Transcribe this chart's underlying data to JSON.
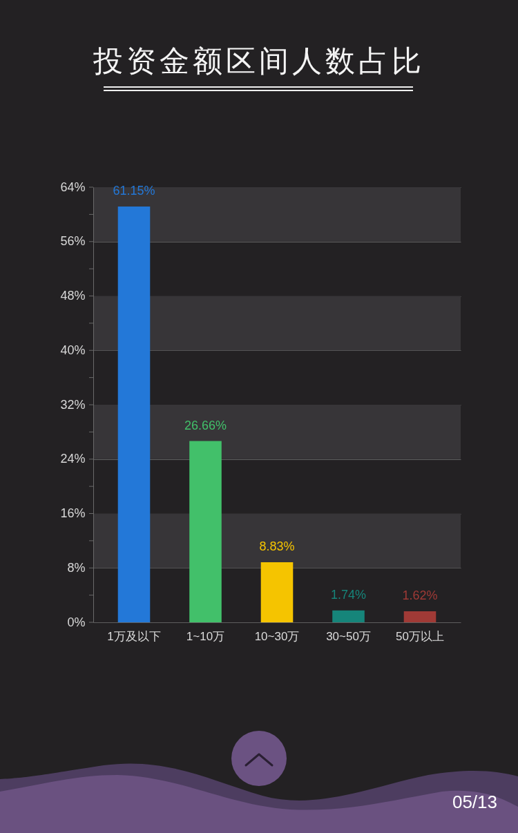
{
  "chart_data": {
    "type": "bar",
    "title": "投资金额区间人数占比",
    "categories": [
      "1万及以下",
      "1~10万",
      "10~30万",
      "30~50万",
      "50万以上"
    ],
    "values": [
      61.15,
      26.66,
      8.83,
      1.74,
      1.62
    ],
    "value_labels": [
      "61.15%",
      "26.66%",
      "8.83%",
      "1.74%",
      "1.62%"
    ],
    "colors": [
      "#2378d8",
      "#42c06a",
      "#f5c400",
      "#16857a",
      "#a03a36"
    ],
    "ylim": [
      0,
      64
    ],
    "yticks": [
      {
        "value": 0,
        "label": "0%"
      },
      {
        "value": 4,
        "label": null
      },
      {
        "value": 8,
        "label": "8%"
      },
      {
        "value": 12,
        "label": null
      },
      {
        "value": 16,
        "label": "16%"
      },
      {
        "value": 20,
        "label": null
      },
      {
        "value": 24,
        "label": "24%"
      },
      {
        "value": 28,
        "label": null
      },
      {
        "value": 32,
        "label": "32%"
      },
      {
        "value": 36,
        "label": null
      },
      {
        "value": 40,
        "label": "40%"
      },
      {
        "value": 44,
        "label": null
      },
      {
        "value": 48,
        "label": "48%"
      },
      {
        "value": 52,
        "label": null
      },
      {
        "value": 56,
        "label": "56%"
      },
      {
        "value": 60,
        "label": null
      },
      {
        "value": 64,
        "label": "64%"
      }
    ],
    "grid": "y",
    "bands": [
      {
        "axis": "y",
        "from": 8,
        "to": 16,
        "color": "#373538"
      },
      {
        "axis": "y",
        "from": 24,
        "to": 32,
        "color": "#373538"
      },
      {
        "axis": "y",
        "from": 40,
        "to": 48,
        "color": "#373538"
      },
      {
        "axis": "y",
        "from": 56,
        "to": 64,
        "color": "#373538"
      }
    ],
    "annotations": [
      "05/13"
    ]
  }
}
